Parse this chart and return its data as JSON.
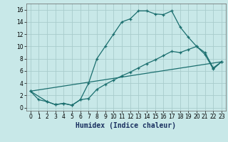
{
  "xlabel": "Humidex (Indice chaleur)",
  "bg_color": "#c8e8e8",
  "grid_color": "#a8cccc",
  "line_color": "#1a6e6e",
  "xlim": [
    -0.5,
    23.5
  ],
  "ylim": [
    -0.5,
    17.0
  ],
  "xticks": [
    0,
    1,
    2,
    3,
    4,
    5,
    6,
    7,
    8,
    9,
    10,
    11,
    12,
    13,
    14,
    15,
    16,
    17,
    18,
    19,
    20,
    21,
    22,
    23
  ],
  "yticks": [
    0,
    2,
    4,
    6,
    8,
    10,
    12,
    14,
    16
  ],
  "line1_x": [
    0,
    1,
    2,
    3,
    4,
    5,
    6,
    7,
    8,
    9,
    10,
    11,
    12,
    13,
    14,
    15,
    16,
    17,
    18,
    19,
    20,
    21,
    22,
    23
  ],
  "line1_y": [
    2.7,
    1.3,
    1.0,
    0.5,
    0.7,
    0.4,
    1.3,
    4.0,
    8.0,
    10.0,
    12.0,
    14.0,
    14.5,
    15.8,
    15.8,
    15.3,
    15.2,
    15.8,
    13.2,
    11.5,
    10.0,
    8.7,
    6.3,
    7.5
  ],
  "line2_x": [
    0,
    2,
    3,
    4,
    5,
    6,
    7,
    8,
    9,
    10,
    11,
    12,
    13,
    14,
    15,
    16,
    17,
    18,
    19,
    20,
    21,
    22,
    23
  ],
  "line2_y": [
    2.7,
    1.0,
    0.5,
    0.7,
    0.4,
    1.3,
    1.5,
    3.0,
    3.8,
    4.5,
    5.2,
    5.8,
    6.5,
    7.2,
    7.8,
    8.5,
    9.2,
    9.0,
    9.5,
    10.0,
    9.0,
    6.5,
    7.5
  ],
  "line3_x": [
    0,
    23
  ],
  "line3_y": [
    2.7,
    7.5
  ],
  "xlabel_fontsize": 7,
  "tick_fontsize": 5.5
}
